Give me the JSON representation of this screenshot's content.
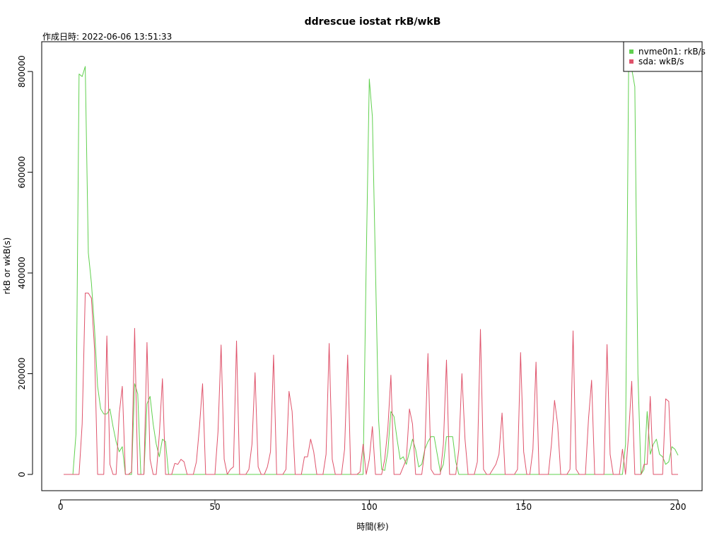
{
  "chart_data": {
    "type": "line",
    "title": "ddrescue iostat rkB/wkB",
    "subtitle": "作成日時: 2022-06-06 13:51:33",
    "xlabel": "時間(秒)",
    "ylabel": "rkB or wkB(s)",
    "xlim": [
      1,
      200
    ],
    "ylim": [
      0,
      810000
    ],
    "x_ticks": [
      0,
      50,
      100,
      150,
      200
    ],
    "y_ticks": [
      0,
      200000,
      400000,
      600000,
      800000
    ],
    "grid": false,
    "legend_position": "top-right",
    "series": [
      {
        "name": "nvme0n1: rkB/s",
        "color": "#61D04F",
        "points": [
          [
            1,
            0
          ],
          [
            2,
            0
          ],
          [
            3,
            0
          ],
          [
            4,
            0
          ],
          [
            5,
            80000
          ],
          [
            6,
            795000
          ],
          [
            7,
            790000
          ],
          [
            8,
            810000
          ],
          [
            9,
            440000
          ],
          [
            10,
            380000
          ],
          [
            11,
            290000
          ],
          [
            12,
            175000
          ],
          [
            13,
            130000
          ],
          [
            14,
            120000
          ],
          [
            15,
            120000
          ],
          [
            16,
            130000
          ],
          [
            17,
            95000
          ],
          [
            18,
            65000
          ],
          [
            19,
            45000
          ],
          [
            20,
            55000
          ],
          [
            21,
            0
          ],
          [
            22,
            0
          ],
          [
            23,
            0
          ],
          [
            24,
            180000
          ],
          [
            25,
            160000
          ],
          [
            26,
            0
          ],
          [
            27,
            0
          ],
          [
            28,
            140000
          ],
          [
            29,
            155000
          ],
          [
            30,
            100000
          ],
          [
            31,
            60000
          ],
          [
            32,
            35000
          ],
          [
            33,
            70000
          ],
          [
            34,
            65000
          ],
          [
            35,
            0
          ],
          [
            36,
            0
          ],
          [
            40,
            0
          ],
          [
            50,
            0
          ],
          [
            60,
            0
          ],
          [
            70,
            0
          ],
          [
            80,
            0
          ],
          [
            90,
            0
          ],
          [
            96,
            0
          ],
          [
            97,
            0
          ],
          [
            98,
            0
          ],
          [
            99,
            420000
          ],
          [
            100,
            785000
          ],
          [
            101,
            710000
          ],
          [
            102,
            410000
          ],
          [
            103,
            110000
          ],
          [
            104,
            10000
          ],
          [
            105,
            8000
          ],
          [
            106,
            45000
          ],
          [
            107,
            125000
          ],
          [
            108,
            115000
          ],
          [
            109,
            70000
          ],
          [
            110,
            30000
          ],
          [
            111,
            35000
          ],
          [
            112,
            20000
          ],
          [
            113,
            45000
          ],
          [
            114,
            70000
          ],
          [
            115,
            50000
          ],
          [
            116,
            15000
          ],
          [
            117,
            20000
          ],
          [
            118,
            50000
          ],
          [
            119,
            65000
          ],
          [
            120,
            75000
          ],
          [
            121,
            75000
          ],
          [
            122,
            40000
          ],
          [
            123,
            5000
          ],
          [
            124,
            20000
          ],
          [
            125,
            75000
          ],
          [
            126,
            75000
          ],
          [
            127,
            75000
          ],
          [
            128,
            25000
          ],
          [
            129,
            0
          ],
          [
            130,
            0
          ],
          [
            140,
            0
          ],
          [
            150,
            0
          ],
          [
            160,
            0
          ],
          [
            170,
            0
          ],
          [
            180,
            0
          ],
          [
            182,
            0
          ],
          [
            183,
            60000
          ],
          [
            184,
            810000
          ],
          [
            185,
            805000
          ],
          [
            186,
            770000
          ],
          [
            187,
            200000
          ],
          [
            188,
            0
          ],
          [
            189,
            10000
          ],
          [
            190,
            125000
          ],
          [
            191,
            40000
          ],
          [
            192,
            60000
          ],
          [
            193,
            70000
          ],
          [
            194,
            40000
          ],
          [
            195,
            35000
          ],
          [
            196,
            20000
          ],
          [
            197,
            25000
          ],
          [
            198,
            55000
          ],
          [
            199,
            50000
          ],
          [
            200,
            38000
          ]
        ]
      },
      {
        "name": "sda: wkB/s",
        "color": "#DF536B",
        "points": [
          [
            1,
            0
          ],
          [
            2,
            0
          ],
          [
            3,
            0
          ],
          [
            4,
            0
          ],
          [
            5,
            0
          ],
          [
            6,
            0
          ],
          [
            7,
            100000
          ],
          [
            8,
            360000
          ],
          [
            9,
            360000
          ],
          [
            10,
            350000
          ],
          [
            11,
            250000
          ],
          [
            12,
            0
          ],
          [
            13,
            0
          ],
          [
            14,
            0
          ],
          [
            15,
            275000
          ],
          [
            16,
            20000
          ],
          [
            17,
            0
          ],
          [
            18,
            0
          ],
          [
            19,
            120000
          ],
          [
            20,
            175000
          ],
          [
            21,
            0
          ],
          [
            22,
            0
          ],
          [
            23,
            5000
          ],
          [
            24,
            290000
          ],
          [
            25,
            0
          ],
          [
            26,
            0
          ],
          [
            27,
            0
          ],
          [
            28,
            262000
          ],
          [
            29,
            30000
          ],
          [
            30,
            0
          ],
          [
            31,
            0
          ],
          [
            32,
            80000
          ],
          [
            33,
            190000
          ],
          [
            34,
            0
          ],
          [
            35,
            0
          ],
          [
            36,
            0
          ],
          [
            37,
            22000
          ],
          [
            38,
            20000
          ],
          [
            39,
            30000
          ],
          [
            40,
            25000
          ],
          [
            41,
            0
          ],
          [
            42,
            0
          ],
          [
            43,
            0
          ],
          [
            44,
            25000
          ],
          [
            45,
            95000
          ],
          [
            46,
            180000
          ],
          [
            47,
            0
          ],
          [
            48,
            0
          ],
          [
            49,
            0
          ],
          [
            50,
            0
          ],
          [
            51,
            85000
          ],
          [
            52,
            257000
          ],
          [
            53,
            30000
          ],
          [
            54,
            0
          ],
          [
            55,
            10000
          ],
          [
            56,
            15000
          ],
          [
            57,
            265000
          ],
          [
            58,
            0
          ],
          [
            59,
            0
          ],
          [
            60,
            0
          ],
          [
            61,
            10000
          ],
          [
            62,
            60000
          ],
          [
            63,
            202000
          ],
          [
            64,
            15000
          ],
          [
            65,
            0
          ],
          [
            66,
            0
          ],
          [
            67,
            15000
          ],
          [
            68,
            45000
          ],
          [
            69,
            237000
          ],
          [
            70,
            0
          ],
          [
            71,
            0
          ],
          [
            72,
            0
          ],
          [
            73,
            10000
          ],
          [
            74,
            165000
          ],
          [
            75,
            125000
          ],
          [
            76,
            0
          ],
          [
            77,
            0
          ],
          [
            78,
            0
          ],
          [
            79,
            35000
          ],
          [
            80,
            35000
          ],
          [
            81,
            70000
          ],
          [
            82,
            45000
          ],
          [
            83,
            0
          ],
          [
            84,
            0
          ],
          [
            85,
            0
          ],
          [
            86,
            40000
          ],
          [
            87,
            260000
          ],
          [
            88,
            30000
          ],
          [
            89,
            0
          ],
          [
            90,
            0
          ],
          [
            91,
            0
          ],
          [
            92,
            50000
          ],
          [
            93,
            237000
          ],
          [
            94,
            0
          ],
          [
            95,
            0
          ],
          [
            96,
            0
          ],
          [
            97,
            5000
          ],
          [
            98,
            60000
          ],
          [
            99,
            0
          ],
          [
            100,
            30000
          ],
          [
            101,
            95000
          ],
          [
            102,
            0
          ],
          [
            103,
            0
          ],
          [
            104,
            0
          ],
          [
            105,
            30000
          ],
          [
            106,
            90000
          ],
          [
            107,
            197000
          ],
          [
            108,
            0
          ],
          [
            109,
            0
          ],
          [
            110,
            0
          ],
          [
            111,
            15000
          ],
          [
            112,
            30000
          ],
          [
            113,
            130000
          ],
          [
            114,
            100000
          ],
          [
            115,
            0
          ],
          [
            116,
            0
          ],
          [
            117,
            0
          ],
          [
            118,
            50000
          ],
          [
            119,
            240000
          ],
          [
            120,
            10000
          ],
          [
            121,
            0
          ],
          [
            122,
            0
          ],
          [
            123,
            0
          ],
          [
            124,
            60000
          ],
          [
            125,
            227000
          ],
          [
            126,
            0
          ],
          [
            127,
            0
          ],
          [
            128,
            0
          ],
          [
            129,
            50000
          ],
          [
            130,
            200000
          ],
          [
            131,
            70000
          ],
          [
            132,
            0
          ],
          [
            133,
            0
          ],
          [
            134,
            0
          ],
          [
            135,
            25000
          ],
          [
            136,
            288000
          ],
          [
            137,
            10000
          ],
          [
            138,
            0
          ],
          [
            139,
            0
          ],
          [
            140,
            10000
          ],
          [
            141,
            20000
          ],
          [
            142,
            40000
          ],
          [
            143,
            122000
          ],
          [
            144,
            0
          ],
          [
            145,
            0
          ],
          [
            146,
            0
          ],
          [
            147,
            0
          ],
          [
            148,
            10000
          ],
          [
            149,
            242000
          ],
          [
            150,
            45000
          ],
          [
            151,
            0
          ],
          [
            152,
            0
          ],
          [
            153,
            50000
          ],
          [
            154,
            223000
          ],
          [
            155,
            0
          ],
          [
            156,
            0
          ],
          [
            157,
            0
          ],
          [
            158,
            0
          ],
          [
            159,
            60000
          ],
          [
            160,
            147000
          ],
          [
            161,
            100000
          ],
          [
            162,
            0
          ],
          [
            163,
            0
          ],
          [
            164,
            0
          ],
          [
            165,
            10000
          ],
          [
            166,
            285000
          ],
          [
            167,
            10000
          ],
          [
            168,
            0
          ],
          [
            169,
            0
          ],
          [
            170,
            0
          ],
          [
            171,
            110000
          ],
          [
            172,
            187000
          ],
          [
            173,
            0
          ],
          [
            174,
            0
          ],
          [
            175,
            0
          ],
          [
            176,
            0
          ],
          [
            177,
            258000
          ],
          [
            178,
            40000
          ],
          [
            179,
            0
          ],
          [
            180,
            0
          ],
          [
            181,
            0
          ],
          [
            182,
            50000
          ],
          [
            183,
            0
          ],
          [
            184,
            80000
          ],
          [
            185,
            185000
          ],
          [
            186,
            0
          ],
          [
            187,
            0
          ],
          [
            188,
            0
          ],
          [
            189,
            20000
          ],
          [
            190,
            20000
          ],
          [
            191,
            155000
          ],
          [
            192,
            0
          ],
          [
            193,
            0
          ],
          [
            194,
            0
          ],
          [
            195,
            0
          ],
          [
            196,
            150000
          ],
          [
            197,
            145000
          ],
          [
            198,
            0
          ],
          [
            199,
            0
          ],
          [
            200,
            0
          ]
        ]
      }
    ]
  }
}
